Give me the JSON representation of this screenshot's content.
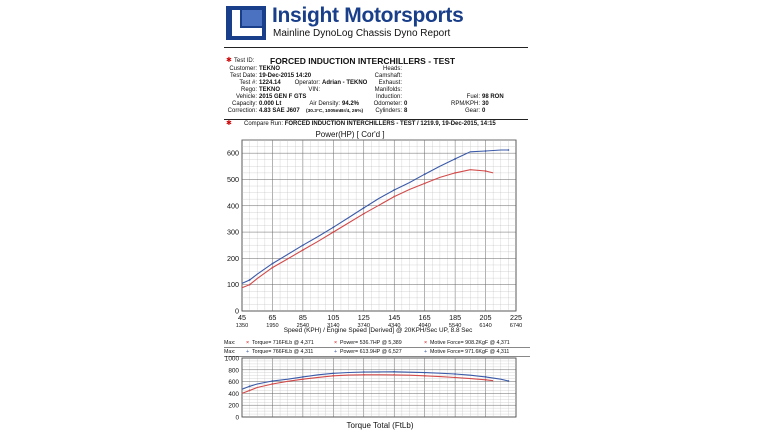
{
  "header": {
    "brand": "Insight Motorsports",
    "subtitle": "Mainline DynoLog Chassis Dyno Report"
  },
  "test_id": {
    "label": "Test ID:",
    "value": "FORCED INDUCTION INTERCHILLERS - TEST"
  },
  "info_left": [
    {
      "label": "Customer:",
      "value": "TEKNO"
    },
    {
      "label": "Test Date:",
      "value": "19-Dec-2015 14:20"
    },
    {
      "label": "Test #:",
      "value": "1224.14"
    },
    {
      "label": "Rego:",
      "value": "TEKNO"
    },
    {
      "label": "Vehicle:",
      "value": "2015 GEN F GTS"
    },
    {
      "label": "Capacity:",
      "value": "0.000 Lt"
    },
    {
      "label": "Correction:",
      "value": "4.83 SAE J607"
    }
  ],
  "info_mid": [
    {
      "label": "Operator:",
      "value": "Adrian - TEKNO"
    },
    {
      "label": "VIN:",
      "value": ""
    },
    {
      "label": "Air Density:",
      "value": "94.2%"
    },
    {
      "label": "",
      "value": "(30.3°C, 1005mBr/4, 26%)"
    }
  ],
  "info_right": [
    {
      "label": "Heads:",
      "value": ""
    },
    {
      "label": "Camshaft:",
      "value": ""
    },
    {
      "label": "Exhaust:",
      "value": ""
    },
    {
      "label": "Manifolds:",
      "value": ""
    },
    {
      "label": "Induction:",
      "value": ""
    },
    {
      "label": "Odometer:",
      "value": "0"
    },
    {
      "label": "Cylinders:",
      "value": "8"
    }
  ],
  "info_far": [
    {
      "label": "Fuel:",
      "value": "98 RON"
    },
    {
      "label": "RPM/KPH:",
      "value": "30"
    },
    {
      "label": "Gear:",
      "value": "0"
    }
  ],
  "compare": {
    "label": "Compare Run:",
    "value": "FORCED INDUCTION INTERCHILLERS - TEST / 1219.9,  19-Dec-2015,    14:15"
  },
  "power_chart": {
    "title": "Power(HP)      [ Cor'd ]",
    "xlabel": "Speed (KPH) / Engine Speed [Derived] @ 20KPH/Sec UP, 8.8 Sec",
    "xticks": [
      "45",
      "65",
      "85",
      "105",
      "125",
      "145",
      "165",
      "185",
      "205",
      "225"
    ],
    "rpm_ticks": [
      "1350",
      "1950",
      "2540",
      "3140",
      "3740",
      "4340",
      "4940",
      "5540",
      "6140",
      "6740"
    ],
    "yticks": [
      "0",
      "100",
      "200",
      "300",
      "400",
      "500",
      "600"
    ]
  },
  "stats": [
    [
      "Max:",
      "Torque= 716FtLb @ 4,371",
      "Power= 536.7HP @ 5,389",
      "Motive Force= 908.2KgF @ 4,371"
    ],
    [
      "Max:",
      "Torque= 766FtLb @ 4,311",
      "Power= 613.9HP @ 6,527",
      "Motive Force= 971.6KgF @ 4,311"
    ]
  ],
  "torque_chart": {
    "title": "Torque Total (FtLb)",
    "yticks": [
      "0",
      "200",
      "400",
      "600",
      "800",
      "1000"
    ]
  },
  "chart_data": [
    {
      "type": "line",
      "title": "Power(HP)      [ Cor'd ]",
      "xlabel": "Speed (KPH) / Engine Speed [Derived] @ 20KPH/Sec UP, 8.8 Sec",
      "ylabel": "",
      "xlim": [
        45,
        225
      ],
      "ylim": [
        0,
        650
      ],
      "grid": true,
      "series": [
        {
          "color": "#3b5aa8",
          "x": [
            45,
            50,
            55,
            65,
            75,
            85,
            95,
            105,
            115,
            125,
            135,
            145,
            155,
            165,
            175,
            185,
            195,
            205,
            215,
            220
          ],
          "y": [
            105,
            118,
            140,
            180,
            215,
            250,
            283,
            318,
            355,
            392,
            428,
            460,
            488,
            520,
            550,
            578,
            605,
            608,
            612,
            612
          ]
        },
        {
          "color": "#d24a4a",
          "x": [
            45,
            50,
            55,
            65,
            75,
            85,
            95,
            105,
            115,
            125,
            135,
            145,
            155,
            165,
            175,
            185,
            195,
            205,
            210
          ],
          "y": [
            88,
            100,
            123,
            165,
            198,
            232,
            265,
            300,
            335,
            370,
            402,
            435,
            462,
            485,
            508,
            525,
            537,
            532,
            525
          ]
        }
      ]
    },
    {
      "type": "line",
      "title": "Torque Total (FtLb)",
      "ylim": [
        0,
        1000
      ],
      "grid": true,
      "series": [
        {
          "color": "#3b5aa8",
          "x": [
            45,
            50,
            55,
            65,
            75,
            85,
            95,
            105,
            115,
            125,
            135,
            145,
            155,
            165,
            175,
            185,
            195,
            205,
            215,
            220
          ],
          "y": [
            470,
            520,
            560,
            610,
            640,
            680,
            715,
            740,
            755,
            762,
            765,
            766,
            760,
            752,
            742,
            728,
            708,
            680,
            640,
            610
          ]
        },
        {
          "color": "#d24a4a",
          "x": [
            45,
            50,
            55,
            65,
            75,
            85,
            95,
            105,
            115,
            125,
            135,
            145,
            155,
            165,
            175,
            185,
            195,
            205,
            210
          ],
          "y": [
            400,
            450,
            500,
            560,
            605,
            640,
            672,
            698,
            710,
            715,
            716,
            714,
            708,
            698,
            685,
            670,
            650,
            630,
            615
          ]
        }
      ]
    }
  ]
}
